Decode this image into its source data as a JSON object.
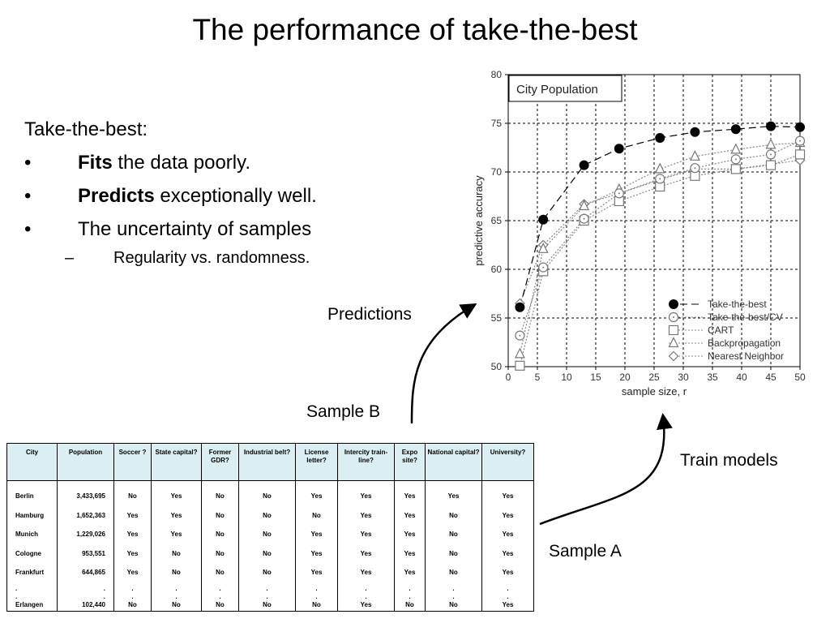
{
  "slide": {
    "title": "The performance of take-the-best",
    "intro": "Take-the-best:",
    "bullets": [
      {
        "mark": "•",
        "bold": "Fits",
        "rest": " the data poorly."
      },
      {
        "mark": "•",
        "bold": "Predicts",
        "rest": " exceptionally well."
      },
      {
        "mark": "•",
        "bold": "",
        "rest": "The uncertainty of samples"
      }
    ],
    "sub_bullet": {
      "mark": "–",
      "text": "Regularity vs. randomness."
    }
  },
  "labels": {
    "predictions": "Predictions",
    "sample_b": "Sample B",
    "train_models": "Train models",
    "sample_a": "Sample A"
  },
  "chart_data": {
    "type": "line",
    "title": "City Population",
    "xlabel": "sample size, r",
    "ylabel": "predictive accuracy",
    "xlim": [
      0,
      50
    ],
    "ylim": [
      50,
      80
    ],
    "xticks": [
      0,
      5,
      10,
      15,
      20,
      25,
      30,
      35,
      40,
      45,
      50
    ],
    "yticks": [
      50,
      55,
      60,
      65,
      70,
      75,
      80
    ],
    "grid": true,
    "legend_position": "bottom-right",
    "x": [
      2,
      6,
      13,
      19,
      26,
      32,
      39,
      45,
      50
    ],
    "series": [
      {
        "name": "Take-the-best",
        "marker": "filled-circle",
        "line": "dashed",
        "color": "#000000",
        "values": [
          56.1,
          65.1,
          70.7,
          72.4,
          73.5,
          74.1,
          74.4,
          74.7,
          74.6
        ]
      },
      {
        "name": "Take-the-best/CV",
        "marker": "open-circle",
        "line": "dotted",
        "color": "#777777",
        "values": [
          53.2,
          60.2,
          65.2,
          67.8,
          69.3,
          70.4,
          71.3,
          71.8,
          73.2
        ]
      },
      {
        "name": "CART",
        "marker": "open-square",
        "line": "dotted",
        "color": "#777777",
        "values": [
          50.1,
          59.8,
          65.0,
          67.0,
          68.5,
          69.6,
          70.3,
          70.7,
          71.8
        ]
      },
      {
        "name": "Backpropagation",
        "marker": "open-triangle",
        "line": "dotted",
        "color": "#777777",
        "values": [
          51.3,
          62.1,
          66.5,
          68.2,
          70.3,
          71.6,
          72.3,
          72.8,
          73.0
        ]
      },
      {
        "name": "Nearest Neighbor",
        "marker": "open-diamond",
        "line": "dotted",
        "color": "#777777",
        "values": [
          56.5,
          62.5,
          66.7,
          67.8,
          69.2,
          70.3,
          70.3,
          70.8,
          71.2
        ]
      }
    ]
  },
  "table": {
    "headers": [
      "City",
      "Population",
      "Soccer ?",
      "State capital?",
      "Former GDR?",
      "Industrial belt?",
      "License letter?",
      "Intercity train-line?",
      "Expo site?",
      "National capital?",
      "University?"
    ],
    "rows": [
      [
        "Berlin",
        "3,433,695",
        "No",
        "Yes",
        "No",
        "No",
        "Yes",
        "Yes",
        "Yes",
        "Yes",
        "Yes"
      ],
      [
        "Hamburg",
        "1,652,363",
        "Yes",
        "Yes",
        "No",
        "No",
        "No",
        "Yes",
        "Yes",
        "No",
        "Yes"
      ],
      [
        "Munich",
        "1,229,026",
        "Yes",
        "Yes",
        "No",
        "No",
        "Yes",
        "Yes",
        "Yes",
        "No",
        "Yes"
      ],
      [
        "Cologne",
        "953,551",
        "Yes",
        "No",
        "No",
        "No",
        "Yes",
        "Yes",
        "Yes",
        "No",
        "Yes"
      ],
      [
        "Frankfurt",
        "644,865",
        "Yes",
        "No",
        "No",
        "No",
        "Yes",
        "Yes",
        "Yes",
        "No",
        "Yes"
      ],
      [
        ".\n.\nErlangen",
        ".\n.\n102,440",
        ".\n.\nNo",
        ".\n.\nNo",
        ".\n.\nNo",
        ".\n.\nNo",
        ".\n.\nNo",
        ".\n.\nYes",
        ".\n.\nNo",
        ".\n.\nNo",
        ".\n.\nYes"
      ]
    ]
  }
}
